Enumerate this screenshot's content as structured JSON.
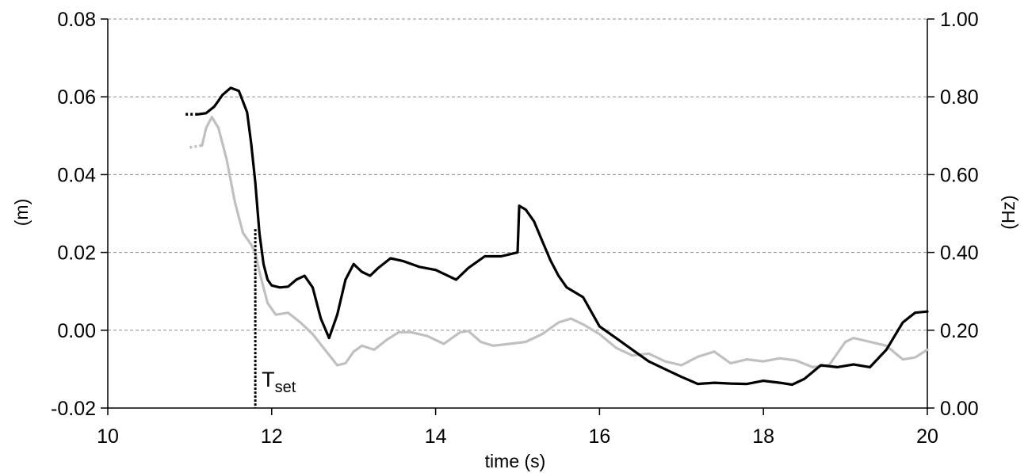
{
  "chart_data": {
    "type": "line",
    "xlabel": "time (s)",
    "ylabel_left": "(m)",
    "ylabel_right": "(Hz)",
    "xlim": [
      10,
      20
    ],
    "ylim_left": [
      -0.02,
      0.08
    ],
    "ylim_right": [
      0.0,
      1.0
    ],
    "xticks": [
      "10",
      "12",
      "14",
      "16",
      "18",
      "20"
    ],
    "yticks_left": [
      "-0.02",
      "0.00",
      "0.02",
      "0.04",
      "0.06",
      "0.08"
    ],
    "yticks_right": [
      "0.00",
      "0.20",
      "0.40",
      "0.60",
      "0.80",
      "1.00"
    ],
    "grid": "horizontal dashed",
    "annotation": {
      "text": "T",
      "subscript": "set",
      "x": 11.8
    },
    "series": [
      {
        "color": "#000000",
        "axis": "left",
        "lead_in_dotted": [
          [
            10.95,
            0.0555
          ],
          [
            11.1,
            0.0555
          ]
        ],
        "points": [
          [
            11.1,
            0.0555
          ],
          [
            11.2,
            0.0558
          ],
          [
            11.3,
            0.0575
          ],
          [
            11.4,
            0.0605
          ],
          [
            11.5,
            0.0623
          ],
          [
            11.6,
            0.0615
          ],
          [
            11.7,
            0.056
          ],
          [
            11.75,
            0.048
          ],
          [
            11.8,
            0.038
          ],
          [
            11.85,
            0.025
          ],
          [
            11.9,
            0.017
          ],
          [
            11.95,
            0.013
          ],
          [
            12.0,
            0.0115
          ],
          [
            12.1,
            0.011
          ],
          [
            12.2,
            0.0112
          ],
          [
            12.3,
            0.013
          ],
          [
            12.4,
            0.014
          ],
          [
            12.5,
            0.011
          ],
          [
            12.6,
            0.003
          ],
          [
            12.7,
            -0.002
          ],
          [
            12.8,
            0.004
          ],
          [
            12.9,
            0.013
          ],
          [
            13.0,
            0.017
          ],
          [
            13.1,
            0.015
          ],
          [
            13.2,
            0.014
          ],
          [
            13.3,
            0.016
          ],
          [
            13.45,
            0.0185
          ],
          [
            13.6,
            0.0178
          ],
          [
            13.8,
            0.0163
          ],
          [
            14.0,
            0.0155
          ],
          [
            14.1,
            0.0145
          ],
          [
            14.25,
            0.013
          ],
          [
            14.4,
            0.016
          ],
          [
            14.6,
            0.019
          ],
          [
            14.8,
            0.019
          ],
          [
            15.0,
            0.02
          ],
          [
            15.02,
            0.032
          ],
          [
            15.1,
            0.031
          ],
          [
            15.2,
            0.028
          ],
          [
            15.3,
            0.023
          ],
          [
            15.4,
            0.018
          ],
          [
            15.5,
            0.014
          ],
          [
            15.6,
            0.011
          ],
          [
            15.8,
            0.0085
          ],
          [
            16.0,
            0.001
          ],
          [
            16.2,
            -0.002
          ],
          [
            16.4,
            -0.005
          ],
          [
            16.6,
            -0.008
          ],
          [
            16.8,
            -0.01
          ],
          [
            17.0,
            -0.012
          ],
          [
            17.2,
            -0.0138
          ],
          [
            17.4,
            -0.0135
          ],
          [
            17.6,
            -0.0137
          ],
          [
            17.8,
            -0.0138
          ],
          [
            18.0,
            -0.013
          ],
          [
            18.2,
            -0.0135
          ],
          [
            18.35,
            -0.014
          ],
          [
            18.5,
            -0.0125
          ],
          [
            18.7,
            -0.009
          ],
          [
            18.9,
            -0.0095
          ],
          [
            19.1,
            -0.0088
          ],
          [
            19.3,
            -0.0095
          ],
          [
            19.5,
            -0.005
          ],
          [
            19.7,
            0.002
          ],
          [
            19.85,
            0.0045
          ],
          [
            20.0,
            0.0048
          ]
        ]
      },
      {
        "color": "#c0c0c0",
        "axis": "left",
        "lead_in_dotted": [
          [
            11.0,
            0.047
          ],
          [
            11.15,
            0.0475
          ]
        ],
        "points": [
          [
            11.15,
            0.0475
          ],
          [
            11.2,
            0.052
          ],
          [
            11.27,
            0.0548
          ],
          [
            11.35,
            0.052
          ],
          [
            11.45,
            0.044
          ],
          [
            11.55,
            0.033
          ],
          [
            11.65,
            0.025
          ],
          [
            11.75,
            0.022
          ],
          [
            11.8,
            0.02
          ],
          [
            11.85,
            0.015
          ],
          [
            11.95,
            0.007
          ],
          [
            12.05,
            0.004
          ],
          [
            12.2,
            0.0045
          ],
          [
            12.35,
            0.002
          ],
          [
            12.5,
            -0.001
          ],
          [
            12.65,
            -0.005
          ],
          [
            12.8,
            -0.009
          ],
          [
            12.9,
            -0.0085
          ],
          [
            13.0,
            -0.0055
          ],
          [
            13.1,
            -0.004
          ],
          [
            13.25,
            -0.005
          ],
          [
            13.4,
            -0.0025
          ],
          [
            13.55,
            -0.0005
          ],
          [
            13.7,
            -0.0005
          ],
          [
            13.9,
            -0.0015
          ],
          [
            14.1,
            -0.0035
          ],
          [
            14.3,
            -0.0005
          ],
          [
            14.4,
            -0.0002
          ],
          [
            14.55,
            -0.003
          ],
          [
            14.7,
            -0.004
          ],
          [
            14.9,
            -0.0035
          ],
          [
            15.1,
            -0.003
          ],
          [
            15.3,
            -0.001
          ],
          [
            15.5,
            0.002
          ],
          [
            15.65,
            0.003
          ],
          [
            15.8,
            0.0015
          ],
          [
            16.0,
            -0.001
          ],
          [
            16.2,
            -0.0045
          ],
          [
            16.4,
            -0.0065
          ],
          [
            16.6,
            -0.006
          ],
          [
            16.8,
            -0.008
          ],
          [
            17.0,
            -0.009
          ],
          [
            17.2,
            -0.0068
          ],
          [
            17.4,
            -0.0055
          ],
          [
            17.6,
            -0.0085
          ],
          [
            17.8,
            -0.0075
          ],
          [
            18.0,
            -0.008
          ],
          [
            18.2,
            -0.0072
          ],
          [
            18.4,
            -0.0078
          ],
          [
            18.6,
            -0.0095
          ],
          [
            18.8,
            -0.009
          ],
          [
            19.0,
            -0.003
          ],
          [
            19.1,
            -0.002
          ],
          [
            19.3,
            -0.003
          ],
          [
            19.5,
            -0.004
          ],
          [
            19.7,
            -0.0075
          ],
          [
            19.85,
            -0.007
          ],
          [
            20.0,
            -0.005
          ]
        ]
      }
    ]
  }
}
